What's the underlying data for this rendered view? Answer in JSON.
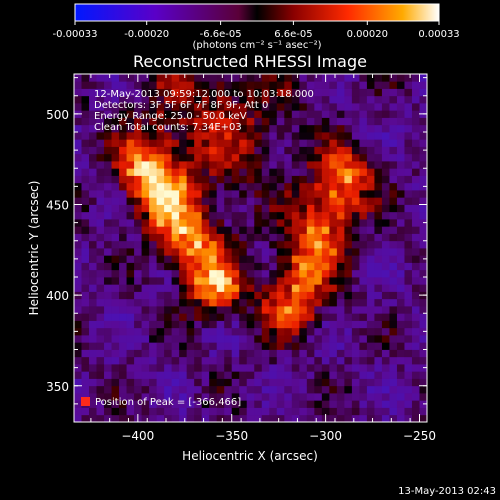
{
  "colorbar": {
    "tick_labels": [
      "-0.00033",
      "-0.00020",
      "-6.6e-05",
      "6.6e-05",
      "0.00020",
      "0.00033"
    ],
    "tick_values": [
      -0.00033,
      -0.0002,
      -6.6e-05,
      6.6e-05,
      0.0002,
      0.00033
    ],
    "min": -0.00033,
    "max": 0.00033,
    "unit_label": "(photons cm⁻² s⁻¹ asec⁻²)"
  },
  "chart_data": {
    "type": "heatmap",
    "title": "Reconstructed RHESSI Image",
    "xlabel": "Heliocentric X (arcsec)",
    "ylabel": "Heliocentric Y (arcsec)",
    "xlim": [
      -434,
      -246
    ],
    "ylim": [
      330,
      522
    ],
    "x_ticks": [
      -400,
      -350,
      -300,
      -250
    ],
    "y_ticks": [
      350,
      400,
      450,
      500
    ],
    "x_tick_labels": [
      "−400",
      "−350",
      "−300",
      "−250"
    ],
    "y_tick_labels": [
      "350",
      "400",
      "450",
      "500"
    ],
    "grid": false,
    "colormap": "rhessi-blue-purple-red-yellow",
    "annotations": [
      "12-May-2013 09:59:12.000 to 10:03:18.000",
      "Detectors: 3F 5F 6F 7F 8F 9F, Att 0",
      "Energy Range: 25.0 - 50.0 keV",
      "Clean     Total counts: 7.34E+03"
    ],
    "peak_label": "Position of Peak = [-366,466]",
    "peak": {
      "x": -366,
      "y": 466
    },
    "bright_ridges": [
      {
        "name": "north-west ridge",
        "from": [
          -395,
          470
        ],
        "to": [
          -358,
          405
        ],
        "peak_value": 0.00033
      },
      {
        "name": "central-east ridge",
        "from": [
          -290,
          465
        ],
        "to": [
          -318,
          395
        ],
        "peak_value": 0.0003
      }
    ]
  },
  "footer": {
    "timestamp": "13-May-2013 02:43"
  },
  "colors": {
    "background": "#000000",
    "foreground": "#ffffff",
    "peak_marker": "#ff2a1a"
  }
}
